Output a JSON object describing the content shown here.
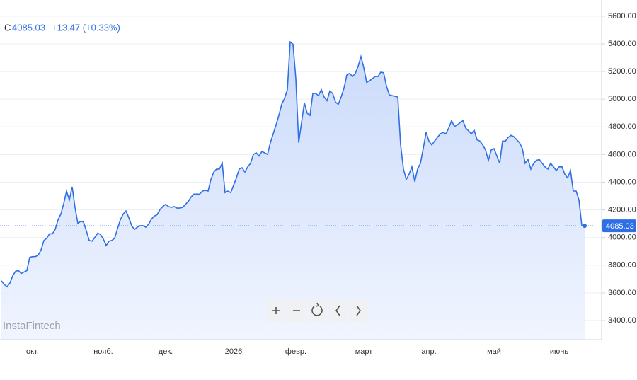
{
  "chart_data": {
    "type": "area",
    "header": {
      "label": "C",
      "change": "+13.47 (+0.33%)"
    },
    "watermark": "InstaFintech",
    "color": "#2f6fe6",
    "ylim": [
      3262,
      5717
    ],
    "yticks": [
      {
        "value": 3400,
        "label": "3400.00"
      },
      {
        "value": 3600,
        "label": "3600.00"
      },
      {
        "value": 3800,
        "label": "3800.00"
      },
      {
        "value": 4000,
        "label": "4000.00"
      },
      {
        "value": 4200,
        "label": "4200.00"
      },
      {
        "value": 4400,
        "label": "4400.00"
      },
      {
        "value": 4600,
        "label": "4600.00"
      },
      {
        "value": 4800,
        "label": "4800.00"
      },
      {
        "value": 5000,
        "label": "5000.00"
      },
      {
        "value": 5200,
        "label": "5200.00"
      },
      {
        "value": 5400,
        "label": "5400.00"
      },
      {
        "value": 5600,
        "label": "5600.00"
      }
    ],
    "grid": true,
    "categories": [
      null,
      null,
      null,
      null,
      null,
      null,
      null,
      null,
      null,
      null,
      null,
      "окт.",
      null,
      null,
      null,
      null,
      null,
      null,
      null,
      null,
      null,
      null,
      null,
      null,
      null,
      null,
      null,
      null,
      null,
      null,
      null,
      null,
      null,
      null,
      null,
      null,
      "нояб.",
      null,
      null,
      null,
      null,
      null,
      null,
      null,
      null,
      null,
      null,
      null,
      null,
      null,
      null,
      null,
      null,
      null,
      null,
      null,
      null,
      null,
      "дек.",
      null,
      null,
      null,
      null,
      null,
      null,
      null,
      null,
      null,
      null,
      null,
      null,
      null,
      null,
      null,
      null,
      null,
      null,
      null,
      null,
      null,
      null,
      null,
      "2026",
      null,
      null,
      null,
      null,
      null,
      null,
      null,
      null,
      null,
      null,
      null,
      null,
      null,
      null,
      null,
      null,
      null,
      null,
      null,
      null,
      null,
      "февр.",
      null,
      null,
      null,
      null,
      null,
      null,
      null,
      null,
      null,
      null,
      null,
      null,
      null,
      null,
      null,
      null,
      null,
      null,
      null,
      null,
      null,
      null,
      null,
      "март",
      null,
      null,
      null,
      null,
      null,
      null,
      null,
      null,
      null,
      null,
      null,
      null,
      null,
      null,
      null,
      null,
      null,
      null,
      null,
      null,
      null,
      null,
      "апр.",
      null,
      null,
      null,
      null,
      null,
      null,
      null,
      null,
      null,
      null,
      null,
      null,
      null,
      null,
      null,
      null,
      null,
      null,
      null,
      null,
      null,
      null,
      "май",
      null,
      null,
      null,
      null,
      null,
      null,
      null,
      null,
      null,
      null,
      null,
      null,
      null,
      null,
      null,
      null,
      null,
      null,
      null,
      null,
      null,
      null,
      "июнь",
      null,
      null,
      null,
      null,
      null,
      null,
      null,
      null,
      null
    ],
    "values": [
      3687,
      3661,
      3645,
      3671,
      3724,
      3756,
      3761,
      3740,
      3751,
      3761,
      3857,
      3862,
      3862,
      3873,
      3910,
      3979,
      3995,
      4027,
      4027,
      4059,
      4128,
      4170,
      4245,
      4336,
      4272,
      4367,
      4218,
      4102,
      4118,
      4112,
      4048,
      3979,
      3974,
      4001,
      4032,
      4022,
      3990,
      3942,
      3974,
      3979,
      3995,
      4064,
      4128,
      4170,
      4192,
      4144,
      4086,
      4059,
      4075,
      4086,
      4086,
      4075,
      4096,
      4134,
      4155,
      4165,
      4202,
      4224,
      4240,
      4224,
      4218,
      4224,
      4213,
      4213,
      4218,
      4240,
      4261,
      4293,
      4314,
      4314,
      4314,
      4336,
      4341,
      4336,
      4420,
      4473,
      4495,
      4495,
      4537,
      4325,
      4336,
      4325,
      4378,
      4431,
      4495,
      4505,
      4473,
      4511,
      4537,
      4601,
      4612,
      4590,
      4622,
      4612,
      4601,
      4686,
      4750,
      4814,
      4883,
      4963,
      5005,
      5069,
      5414,
      5398,
      5148,
      4686,
      4830,
      4973,
      4899,
      4883,
      5042,
      5042,
      5026,
      5069,
      5016,
      4989,
      5058,
      5042,
      4979,
      4963,
      5016,
      5080,
      5175,
      5186,
      5164,
      5186,
      5239,
      5308,
      5228,
      5122,
      5133,
      5148,
      5164,
      5164,
      5196,
      5191,
      5095,
      5031,
      5026,
      5021,
      5016,
      4670,
      4495,
      4420,
      4458,
      4511,
      4404,
      4495,
      4537,
      4643,
      4760,
      4697,
      4670,
      4697,
      4723,
      4750,
      4760,
      4750,
      4792,
      4845,
      4803,
      4814,
      4830,
      4845,
      4792,
      4771,
      4750,
      4776,
      4707,
      4697,
      4670,
      4633,
      4558,
      4633,
      4643,
      4590,
      4537,
      4697,
      4697,
      4723,
      4739,
      4729,
      4707,
      4686,
      4643,
      4537,
      4564,
      4495,
      4537,
      4558,
      4564,
      4537,
      4511,
      4495,
      4537,
      4511,
      4484,
      4511,
      4511,
      4458,
      4431,
      4484,
      4336,
      4336,
      4272,
      4086,
      4085.03
    ]
  }
}
